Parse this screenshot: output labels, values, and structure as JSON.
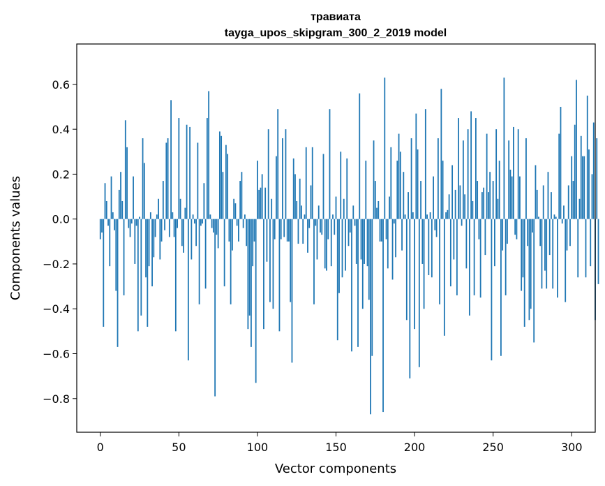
{
  "chart_data": {
    "type": "bar",
    "title": "травиата",
    "subtitle": "tayga_upos_skipgram_300_2_2019 model",
    "xlabel": "Vector components",
    "ylabel": "Components values",
    "xlim": [
      -15,
      315
    ],
    "ylim": [
      -0.95,
      0.78
    ],
    "xticks": [
      0,
      50,
      100,
      150,
      200,
      250,
      300
    ],
    "xtick_labels": [
      "0",
      "50",
      "100",
      "150",
      "200",
      "250",
      "300"
    ],
    "yticks": [
      -0.8,
      -0.6,
      -0.4,
      -0.2,
      0.0,
      0.2,
      0.4,
      0.6
    ],
    "ytick_labels": [
      "−0.8",
      "−0.6",
      "−0.4",
      "−0.2",
      "0.0",
      "0.2",
      "0.4",
      "0.6"
    ],
    "grid": false,
    "bar_color": "#1f77b4",
    "values": [
      -0.09,
      -0.06,
      -0.48,
      0.16,
      0.08,
      -0.03,
      -0.21,
      0.19,
      0.03,
      -0.05,
      -0.32,
      -0.57,
      0.13,
      0.21,
      0.08,
      -0.34,
      0.44,
      0.32,
      -0.04,
      -0.08,
      -0.02,
      0.19,
      -0.2,
      -0.03,
      -0.5,
      0.01,
      -0.43,
      0.36,
      0.25,
      -0.26,
      -0.48,
      -0.21,
      0.03,
      -0.3,
      -0.17,
      -0.08,
      0.02,
      0.09,
      -0.18,
      -0.1,
      0.17,
      -0.05,
      0.34,
      0.36,
      -0.08,
      0.53,
      0.03,
      -0.08,
      -0.5,
      -0.04,
      0.45,
      0.09,
      -0.12,
      -0.15,
      0.05,
      0.42,
      -0.63,
      0.41,
      -0.18,
      0.02,
      -0.02,
      -0.12,
      0.34,
      -0.38,
      -0.03,
      -0.02,
      0.16,
      -0.31,
      0.45,
      0.57,
      0.02,
      -0.04,
      -0.06,
      -0.79,
      -0.07,
      -0.13,
      0.39,
      0.37,
      0.21,
      -0.3,
      0.33,
      0.29,
      -0.1,
      -0.38,
      -0.14,
      0.09,
      0.07,
      -0.03,
      -0.1,
      0.17,
      0.21,
      -0.04,
      0.02,
      -0.12,
      -0.49,
      -0.43,
      -0.57,
      -0.21,
      -0.1,
      -0.73,
      0.26,
      0.13,
      0.14,
      0.2,
      -0.49,
      0.14,
      -0.19,
      0.4,
      -0.37,
      0.09,
      -0.4,
      -0.09,
      0.28,
      0.49,
      -0.5,
      -0.09,
      0.36,
      -0.08,
      0.4,
      -0.1,
      -0.1,
      -0.37,
      -0.64,
      0.27,
      0.2,
      0.08,
      -0.11,
      0.18,
      0.06,
      -0.11,
      0.02,
      0.32,
      -0.15,
      -0.04,
      0.15,
      0.32,
      -0.38,
      -0.03,
      -0.18,
      0.06,
      -0.06,
      -0.07,
      0.29,
      -0.22,
      -0.23,
      -0.09,
      0.49,
      -0.21,
      0.02,
      -0.07,
      0.1,
      -0.54,
      -0.33,
      0.3,
      -0.26,
      0.09,
      -0.23,
      0.27,
      -0.12,
      -0.06,
      -0.59,
      0.06,
      -0.03,
      -0.2,
      -0.57,
      0.56,
      -0.18,
      -0.4,
      -0.2,
      0.26,
      -0.21,
      -0.36,
      -0.87,
      -0.61,
      0.35,
      0.17,
      0.05,
      0.08,
      -0.1,
      -0.1,
      -0.86,
      0.63,
      -0.09,
      -0.22,
      0.1,
      0.32,
      -0.27,
      -0.02,
      -0.17,
      0.26,
      0.38,
      0.3,
      -0.14,
      0.21,
      0.02,
      -0.45,
      0.12,
      -0.71,
      0.36,
      0.03,
      -0.49,
      0.47,
      0.31,
      -0.66,
      0.17,
      -0.2,
      -0.4,
      0.49,
      0.02,
      -0.25,
      0.03,
      -0.26,
      0.19,
      -0.05,
      -0.08,
      0.36,
      -0.38,
      0.58,
      0.26,
      -0.52,
      0.03,
      0.04,
      0.11,
      -0.3,
      0.24,
      -0.18,
      0.13,
      -0.34,
      0.45,
      0.15,
      -0.03,
      0.35,
      0.11,
      -0.22,
      0.4,
      -0.43,
      0.48,
      0.08,
      -0.34,
      0.45,
      0.17,
      -0.09,
      -0.35,
      0.12,
      0.14,
      -0.16,
      0.38,
      0.12,
      0.21,
      -0.63,
      0.17,
      -0.21,
      0.4,
      0.09,
      0.26,
      -0.61,
      -0.14,
      0.63,
      -0.34,
      -0.11,
      0.35,
      0.22,
      0.19,
      0.41,
      -0.07,
      -0.09,
      0.4,
      0.19,
      -0.32,
      -0.26,
      -0.48,
      0.36,
      -0.12,
      -0.45,
      -0.4,
      -0.06,
      -0.55,
      0.24,
      0.13,
      0.01,
      -0.12,
      -0.31,
      0.15,
      -0.23,
      -0.31,
      0.21,
      -0.16,
      0.12,
      -0.31,
      0.02,
      0.01,
      -0.35,
      0.38,
      0.5,
      -0.02,
      0.06,
      -0.37,
      -0.14,
      0.15,
      -0.12,
      0.28,
      0.17,
      0.42,
      0.62,
      -0.26,
      0.09,
      0.37,
      0.28,
      0.28,
      -0.26,
      0.55,
      0.31,
      -0.21,
      0.2,
      0.43,
      -0.45,
      0.36,
      -0.29
    ],
    "notes_color_axis": "#000000"
  }
}
